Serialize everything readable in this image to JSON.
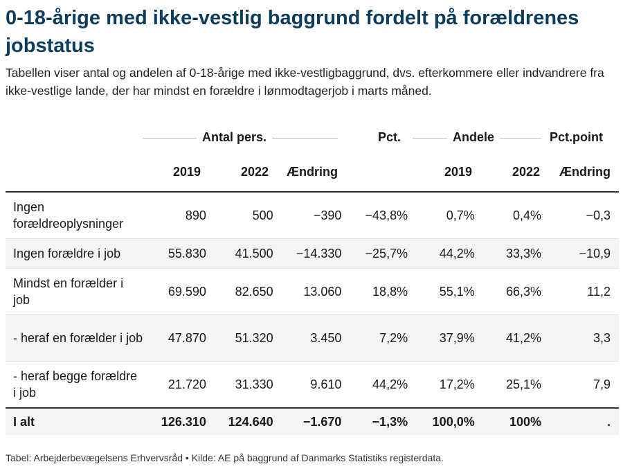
{
  "title": "0-18-årige med ikke-vestlig baggrund fordelt på forældrenes jobstatus",
  "subtitle": "Tabellen viser antal og andelen af 0-18-årige med ikke-vestligbaggrund, dvs. efterkommere eller indvandrere fra ikke-vestlige lande, der har mindst en forældre i lønmodtagerjob i marts måned.",
  "groups": {
    "antal": "Antal pers.",
    "pct": "Pct.",
    "andele": "Andele",
    "pctpoint": "Pct.point"
  },
  "columns": {
    "y2019a": "2019",
    "y2022a": "2022",
    "aendring_a": "Ændring",
    "y2019b": "2019",
    "y2022b": "2022",
    "aendring_b": "Ændring"
  },
  "rows": [
    {
      "label": "Ingen forældreoplysninger",
      "v": [
        "890",
        "500",
        "−390",
        "−43,8%",
        "0,7%",
        "0,4%",
        "−0,3"
      ]
    },
    {
      "label": "Ingen forældre i job",
      "v": [
        "55.830",
        "41.500",
        "−14.330",
        "−25,7%",
        "44,2%",
        "33,3%",
        "−10,9"
      ]
    },
    {
      "label": "Mindst en forælder i job",
      "v": [
        "69.590",
        "82.650",
        "13.060",
        "18,8%",
        "55,1%",
        "66,3%",
        "11,2"
      ]
    },
    {
      "label": "- heraf en forælder i job",
      "v": [
        "47.870",
        "51.320",
        "3.450",
        "7,2%",
        "37,9%",
        "41,2%",
        "3,3"
      ]
    },
    {
      "label": "- heraf begge forældre i job",
      "v": [
        "21.720",
        "31.330",
        "9.610",
        "44,2%",
        "17,2%",
        "25,1%",
        "7,9"
      ]
    }
  ],
  "total": {
    "label": "I alt",
    "v": [
      "126.310",
      "124.640",
      "−1.670",
      "−1,3%",
      "100,0%",
      "100%",
      "."
    ]
  },
  "footer": "Tabel: Arbejderbevægelsens Erhvervsråd • Kilde: AE på baggrund af Danmarks Statistiks registerdata.",
  "colors": {
    "title": "#0c3d5c",
    "stripe": "#f4f4f4",
    "rule": "#333333"
  }
}
